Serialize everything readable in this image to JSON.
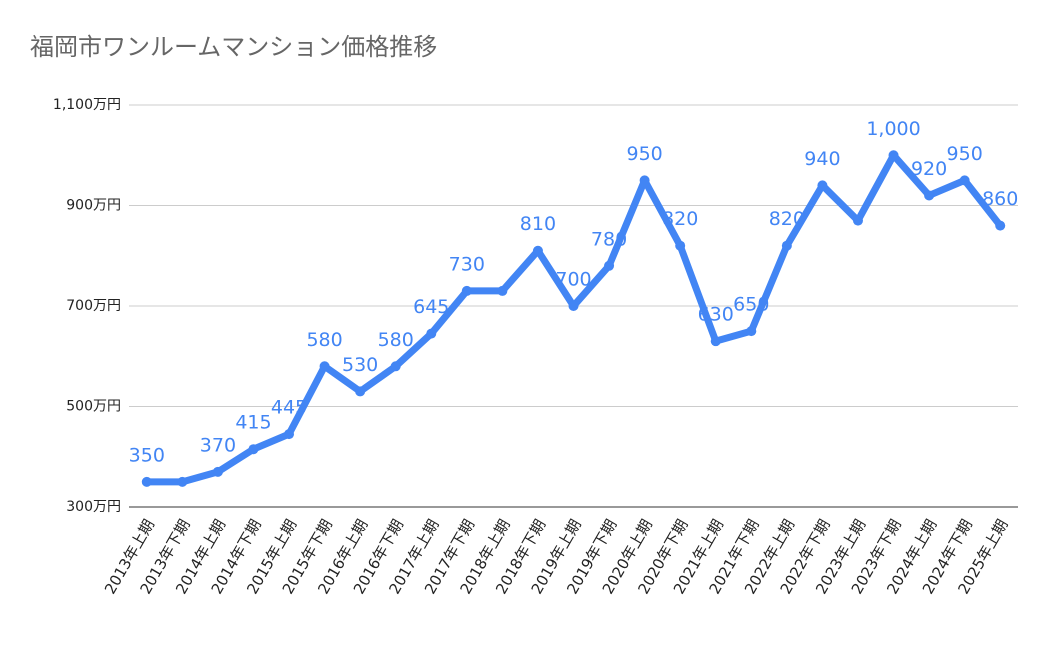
{
  "chart_data": {
    "type": "line",
    "title": "福岡市ワンルームマンション価格推移",
    "categories": [
      "2013年上期",
      "2013年下期",
      "2014年上期",
      "2014年下期",
      "2015年上期",
      "2015年下期",
      "2016年上期",
      "2016年下期",
      "2017年上期",
      "2017年下期",
      "2018年上期",
      "2018年下期",
      "2019年上期",
      "2019年下期",
      "2020年上期",
      "2020年下期",
      "2021年上期",
      "2021年下期",
      "2022年上期",
      "2022年下期",
      "2023年上期",
      "2023年下期",
      "2024年上期",
      "2024年下期",
      "2025年上期"
    ],
    "series": [
      {
        "name": "価格",
        "color": "#4285f4",
        "values": [
          350,
          350,
          370,
          415,
          445,
          580,
          530,
          580,
          645,
          730,
          730,
          810,
          700,
          780,
          950,
          820,
          630,
          650,
          820,
          940,
          870,
          1000,
          920,
          950,
          860
        ],
        "value_labels": [
          "350",
          null,
          "370",
          "415",
          "445",
          "580",
          "530",
          "580",
          "645",
          "730",
          null,
          "810",
          "700",
          "780",
          "950",
          "820",
          "630",
          "650",
          "820",
          "940",
          null,
          "1,000",
          "920",
          "950",
          "860"
        ]
      }
    ],
    "ylim": [
      300,
      1100
    ],
    "yticks": [
      {
        "value": 300,
        "label": "300万円"
      },
      {
        "value": 500,
        "label": "500万円"
      },
      {
        "value": 700,
        "label": "700万円"
      },
      {
        "value": 900,
        "label": "900万円"
      },
      {
        "value": 1100,
        "label": "1,100万円"
      }
    ],
    "grid": true
  }
}
